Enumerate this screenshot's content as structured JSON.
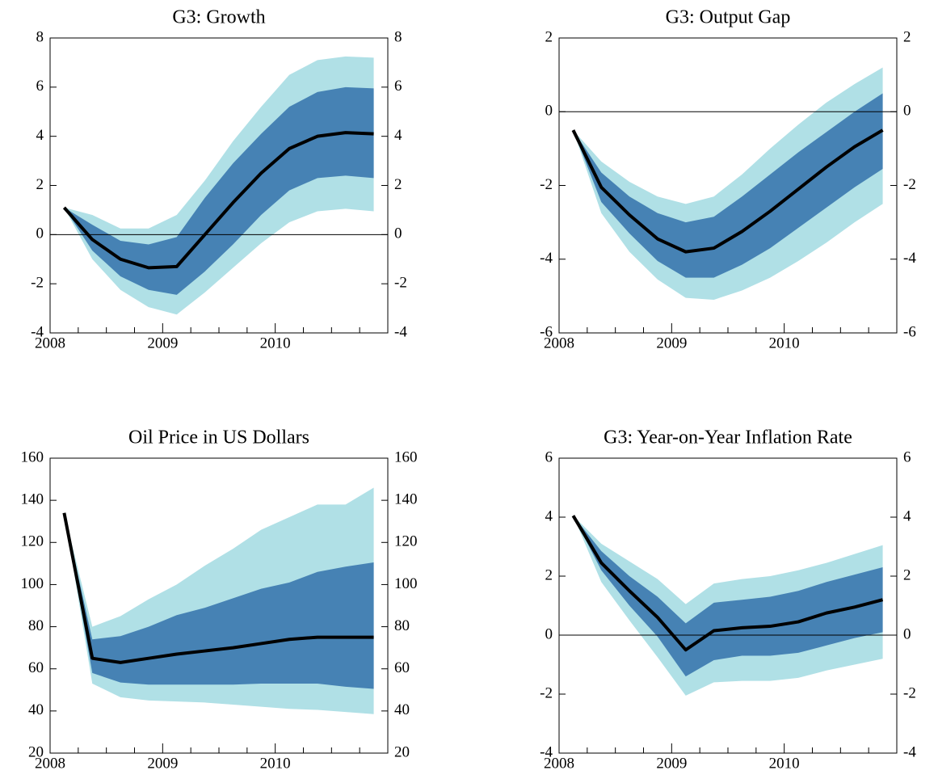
{
  "chart_data": [
    {
      "type": "fan",
      "title": "G3: Growth",
      "x": [
        2008.125,
        2008.375,
        2008.625,
        2008.875,
        2009.125,
        2009.375,
        2009.625,
        2009.875,
        2010.125,
        2010.375,
        2010.625,
        2010.875
      ],
      "xlim": [
        2008,
        2011
      ],
      "xticks": [
        2008,
        2009,
        2010
      ],
      "xticks_minor": [
        2008.25,
        2008.5,
        2008.75,
        2009.25,
        2009.5,
        2009.75,
        2010.25,
        2010.5,
        2010.75
      ],
      "ylim": [
        -4,
        8
      ],
      "yticks": [
        -4,
        -2,
        0,
        2,
        4,
        6,
        8
      ],
      "zero_line": true,
      "bands": [
        {
          "color": "#b0e0e6",
          "upper": [
            1.1,
            0.8,
            0.25,
            0.25,
            0.8,
            2.2,
            3.8,
            5.2,
            6.5,
            7.1,
            7.25,
            7.2
          ],
          "lower": [
            1.1,
            -1.0,
            -2.25,
            -2.95,
            -3.25,
            -2.35,
            -1.35,
            -0.35,
            0.5,
            0.95,
            1.05,
            0.95
          ]
        },
        {
          "color": "#4682b4",
          "upper": [
            1.1,
            0.4,
            -0.25,
            -0.4,
            -0.1,
            1.5,
            2.9,
            4.1,
            5.2,
            5.8,
            6.0,
            5.95
          ],
          "lower": [
            1.1,
            -0.65,
            -1.7,
            -2.25,
            -2.45,
            -1.5,
            -0.4,
            0.8,
            1.8,
            2.3,
            2.4,
            2.3
          ]
        }
      ],
      "line": {
        "color": "#000000",
        "values": [
          1.1,
          -0.2,
          -1.0,
          -1.35,
          -1.3,
          0.0,
          1.3,
          2.5,
          3.5,
          4.0,
          4.15,
          4.1
        ]
      }
    },
    {
      "type": "fan",
      "title": "G3: Output Gap",
      "x": [
        2008.125,
        2008.375,
        2008.625,
        2008.875,
        2009.125,
        2009.375,
        2009.625,
        2009.875,
        2010.125,
        2010.375,
        2010.625,
        2010.875
      ],
      "xlim": [
        2008,
        2011
      ],
      "xticks": [
        2008,
        2009,
        2010
      ],
      "xticks_minor": [
        2008.25,
        2008.5,
        2008.75,
        2009.25,
        2009.5,
        2009.75,
        2010.25,
        2010.5,
        2010.75
      ],
      "ylim": [
        -6,
        2
      ],
      "yticks": [
        -6,
        -4,
        -2,
        0,
        2
      ],
      "zero_line": true,
      "bands": [
        {
          "color": "#b0e0e6",
          "upper": [
            -0.5,
            -1.35,
            -1.9,
            -2.3,
            -2.5,
            -2.3,
            -1.7,
            -1.0,
            -0.35,
            0.25,
            0.75,
            1.2
          ],
          "lower": [
            -0.5,
            -2.75,
            -3.8,
            -4.55,
            -5.05,
            -5.1,
            -4.85,
            -4.5,
            -4.05,
            -3.55,
            -3.0,
            -2.5
          ]
        },
        {
          "color": "#4682b4",
          "upper": [
            -0.5,
            -1.65,
            -2.3,
            -2.75,
            -3.0,
            -2.85,
            -2.3,
            -1.7,
            -1.1,
            -0.55,
            0.0,
            0.5
          ],
          "lower": [
            -0.5,
            -2.45,
            -3.3,
            -4.05,
            -4.5,
            -4.5,
            -4.15,
            -3.7,
            -3.15,
            -2.6,
            -2.05,
            -1.55
          ]
        }
      ],
      "line": {
        "color": "#000000",
        "values": [
          -0.5,
          -2.05,
          -2.8,
          -3.45,
          -3.8,
          -3.7,
          -3.25,
          -2.7,
          -2.1,
          -1.5,
          -0.95,
          -0.5
        ]
      }
    },
    {
      "type": "fan",
      "title": "Oil Price in US Dollars",
      "x": [
        2008.125,
        2008.375,
        2008.625,
        2008.875,
        2009.125,
        2009.375,
        2009.625,
        2009.875,
        2010.125,
        2010.375,
        2010.625,
        2010.875
      ],
      "xlim": [
        2008,
        2011
      ],
      "xticks": [
        2008,
        2009,
        2010
      ],
      "xticks_minor": [
        2008.25,
        2008.5,
        2008.75,
        2009.25,
        2009.5,
        2009.75,
        2010.25,
        2010.5,
        2010.75
      ],
      "ylim": [
        20,
        160
      ],
      "yticks": [
        20,
        40,
        60,
        80,
        100,
        120,
        140,
        160
      ],
      "zero_line": false,
      "bands": [
        {
          "color": "#b0e0e6",
          "upper": [
            134,
            80,
            85,
            93,
            100,
            109,
            117,
            126,
            132,
            138,
            138,
            146
          ],
          "lower": [
            134,
            53,
            46.5,
            45,
            44.5,
            44,
            43,
            42,
            41,
            40.5,
            39.5,
            38.5
          ]
        },
        {
          "color": "#4682b4",
          "upper": [
            134,
            74,
            75.5,
            80,
            85.5,
            89,
            93.5,
            98,
            101,
            106,
            108.5,
            110.5
          ],
          "lower": [
            134,
            58,
            53.5,
            52.5,
            52.5,
            52.5,
            52.5,
            53,
            53,
            53,
            51.5,
            50.5
          ]
        }
      ],
      "line": {
        "color": "#000000",
        "values": [
          134,
          65,
          63,
          65,
          67,
          68.5,
          70,
          72,
          74,
          75,
          75,
          75
        ]
      }
    },
    {
      "type": "fan",
      "title": "G3: Year-on-Year Inflation Rate",
      "x": [
        2008.125,
        2008.375,
        2008.625,
        2008.875,
        2009.125,
        2009.375,
        2009.625,
        2009.875,
        2010.125,
        2010.375,
        2010.625,
        2010.875
      ],
      "xlim": [
        2008,
        2011
      ],
      "xticks": [
        2008,
        2009,
        2010
      ],
      "xticks_minor": [
        2008.25,
        2008.5,
        2008.75,
        2009.25,
        2009.5,
        2009.75,
        2010.25,
        2010.5,
        2010.75
      ],
      "ylim": [
        -4,
        6
      ],
      "yticks": [
        -4,
        -2,
        0,
        2,
        4,
        6
      ],
      "zero_line": true,
      "bands": [
        {
          "color": "#b0e0e6",
          "upper": [
            4.05,
            3.1,
            2.5,
            1.9,
            1.05,
            1.75,
            1.9,
            2.0,
            2.2,
            2.45,
            2.75,
            3.05
          ],
          "lower": [
            4.05,
            1.8,
            0.5,
            -0.75,
            -2.05,
            -1.6,
            -1.55,
            -1.55,
            -1.45,
            -1.2,
            -1.0,
            -0.8
          ]
        },
        {
          "color": "#4682b4",
          "upper": [
            4.05,
            2.85,
            2.0,
            1.3,
            0.4,
            1.1,
            1.2,
            1.3,
            1.5,
            1.8,
            2.05,
            2.3
          ],
          "lower": [
            4.05,
            2.2,
            1.0,
            -0.05,
            -1.4,
            -0.85,
            -0.7,
            -0.7,
            -0.6,
            -0.35,
            -0.1,
            0.1
          ]
        }
      ],
      "line": {
        "color": "#000000",
        "values": [
          4.05,
          2.45,
          1.5,
          0.6,
          -0.5,
          0.15,
          0.25,
          0.3,
          0.45,
          0.75,
          0.95,
          1.2
        ]
      }
    }
  ]
}
